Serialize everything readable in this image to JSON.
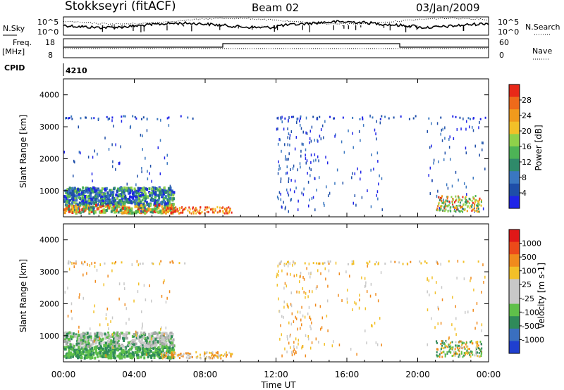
{
  "header": {
    "station": "Stokkseyri (fitACF)",
    "beam": "Beam 02",
    "date": "03/Jan/2009"
  },
  "top_panels": {
    "nsky_label": "N.Sky",
    "nsky_ticks": [
      "10^5",
      "10^0"
    ],
    "nsearch_label": "N.Search",
    "nsearch_ticks": [
      "10^5",
      "10^0"
    ],
    "freq_label": "Freq.",
    "freq_unit": "[MHz]",
    "freq_ticks": [
      "18",
      "8"
    ],
    "nave_label": "Nave",
    "nave_ticks": [
      "60",
      "0"
    ],
    "cpid_label": "CPID",
    "cpid_value": "4210"
  },
  "time_axis": {
    "label": "Time UT",
    "ticks": [
      "00:00",
      "04:00",
      "08:00",
      "12:00",
      "16:00",
      "20:00",
      "00:00"
    ]
  },
  "chart_data": [
    {
      "type": "heatmap",
      "name": "power",
      "ylabel": "Slant Range [km]",
      "yticks": [
        1000,
        2000,
        3000,
        4000
      ],
      "ylim": [
        180,
        4500
      ],
      "xlim_hours": [
        0,
        24
      ],
      "colorbar_label": "Power [dB]",
      "colorbar_ticks": [
        "28",
        "24",
        "20",
        "16",
        "12",
        "8",
        "4"
      ],
      "colorbar_colors": [
        "#1f24e8",
        "#1e4ea8",
        "#3a77c0",
        "#2f8a6a",
        "#4db356",
        "#8fd14a",
        "#f2c028",
        "#f09a1c",
        "#ee6a1a",
        "#e82818"
      ]
    },
    {
      "type": "heatmap",
      "name": "velocity",
      "ylabel": "Slant Range [km]",
      "yticks": [
        1000,
        2000,
        3000,
        4000
      ],
      "ylim": [
        180,
        4500
      ],
      "xlim_hours": [
        0,
        24
      ],
      "colorbar_label": "Velocity [m s-1]",
      "colorbar_ticks": [
        "1000",
        "500",
        "100",
        "25",
        "-25",
        "-100",
        "-500",
        "-1000"
      ],
      "colorbar_colors": [
        "#1f3fcf",
        "#3a6fbf",
        "#2f8a5a",
        "#5fc04a",
        "#c8c8c8",
        "#c8c8c8",
        "#f2c028",
        "#f08a1c",
        "#ec4a1a",
        "#e01818"
      ]
    }
  ]
}
